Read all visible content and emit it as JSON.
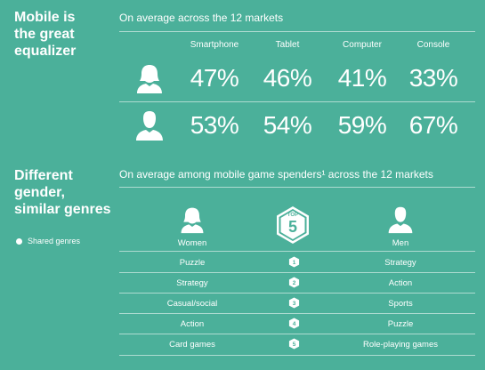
{
  "section1": {
    "heading": "Mobile is\nthe great\nequalizer",
    "subheading": "On average across the 12 markets"
  },
  "section2": {
    "heading": "Different\ngender,\nsimilar genres",
    "subheading": "On average among mobile game spenders¹ across the 12 markets",
    "legend": "Shared genres",
    "women_label": "Women",
    "men_label": "Men",
    "top_label": "TOP",
    "top_number": "5"
  },
  "chart_data": [
    {
      "type": "table",
      "categories": [
        "Smartphone",
        "Tablet",
        "Computer",
        "Console"
      ],
      "series": [
        {
          "name": "",
          "icon": "woman-icon",
          "values": [
            47,
            46,
            41,
            33
          ],
          "labels": [
            "47%",
            "46%",
            "41%",
            "33%"
          ]
        },
        {
          "name": "",
          "icon": "man-icon",
          "values": [
            53,
            54,
            59,
            67
          ],
          "labels": [
            "53%",
            "54%",
            "59%",
            "67%"
          ]
        }
      ]
    },
    {
      "type": "table",
      "ranks": [
        "1",
        "2",
        "3",
        "4",
        "5"
      ],
      "women": [
        "Puzzle",
        "Strategy",
        "Casual/social",
        "Action",
        "Card games"
      ],
      "men": [
        "Strategy",
        "Action",
        "Sports",
        "Puzzle",
        "Role-playing games"
      ]
    }
  ],
  "colors": {
    "background": "#4bb09a",
    "text": "#ffffff"
  }
}
